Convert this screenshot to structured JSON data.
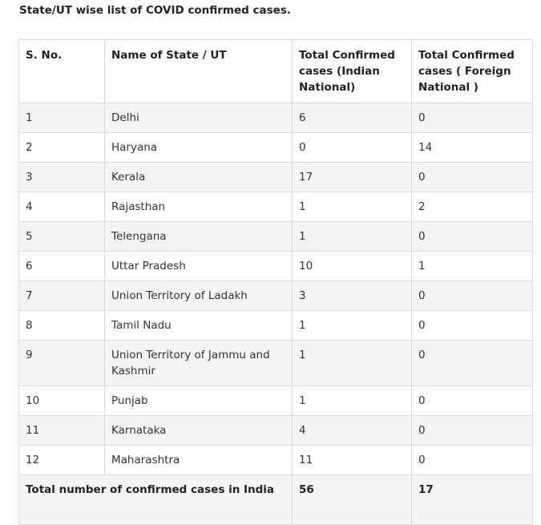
{
  "heading": "State/UT wise list of COVID confirmed cases.",
  "table": {
    "headers": {
      "sno": "S. No.",
      "state": "Name of State / UT",
      "indian": "Total Confirmed cases (Indian National)",
      "foreign": "Total Confirmed cases ( Foreign National )"
    },
    "rows": [
      {
        "sno": "1",
        "state": "Delhi",
        "indian": "6",
        "foreign": "0"
      },
      {
        "sno": "2",
        "state": "Haryana",
        "indian": "0",
        "foreign": "14"
      },
      {
        "sno": "3",
        "state": "Kerala",
        "indian": "17",
        "foreign": "0"
      },
      {
        "sno": "4",
        "state": "Rajasthan",
        "indian": "1",
        "foreign": "2"
      },
      {
        "sno": "5",
        "state": "Telengana",
        "indian": "1",
        "foreign": "0"
      },
      {
        "sno": "6",
        "state": "Uttar Pradesh",
        "indian": "10",
        "foreign": "1"
      },
      {
        "sno": "7",
        "state": "Union Territory of Ladakh",
        "indian": "3",
        "foreign": "0"
      },
      {
        "sno": "8",
        "state": "Tamil Nadu",
        "indian": "1",
        "foreign": "0"
      },
      {
        "sno": "9",
        "state": "Union Territory of Jammu and Kashmir",
        "indian": "1",
        "foreign": "0"
      },
      {
        "sno": "10",
        "state": "Punjab",
        "indian": "1",
        "foreign": "0"
      },
      {
        "sno": "11",
        "state": "Karnataka",
        "indian": "4",
        "foreign": "0"
      },
      {
        "sno": "12",
        "state": "Maharashtra",
        "indian": "11",
        "foreign": "0"
      }
    ],
    "total": {
      "label": "Total number of confirmed cases in India",
      "indian": "56",
      "foreign": "17"
    }
  }
}
